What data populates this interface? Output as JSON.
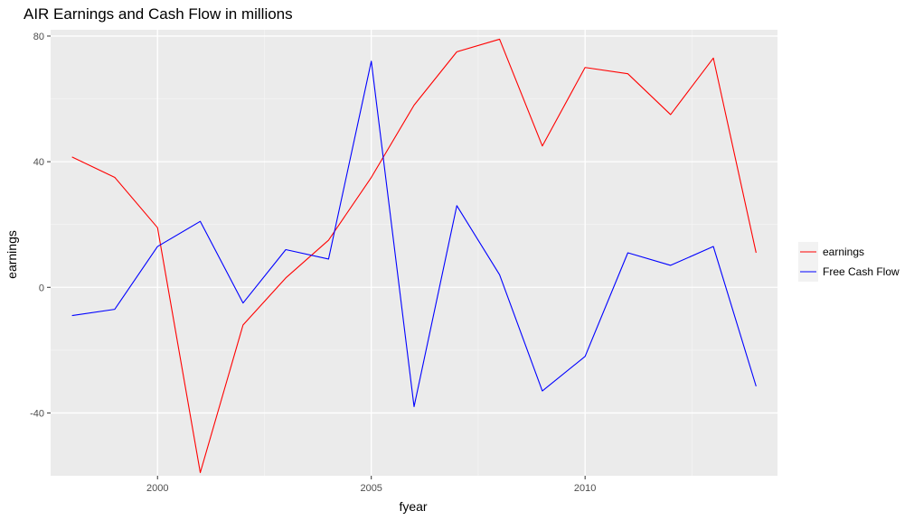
{
  "chart_data": {
    "type": "line",
    "title": "AIR Earnings and Cash Flow in millions",
    "xlabel": "fyear",
    "ylabel": "earnings",
    "xlim": [
      1997.5,
      2014.5
    ],
    "ylim": [
      -60,
      82
    ],
    "x_ticks": [
      2000,
      2005,
      2010
    ],
    "y_ticks": [
      -40,
      0,
      40,
      80
    ],
    "grid": true,
    "legend_position": "right",
    "x": [
      1998,
      1999,
      2000,
      2001,
      2002,
      2003,
      2004,
      2005,
      2006,
      2007,
      2008,
      2009,
      2010,
      2011,
      2012,
      2013,
      2014
    ],
    "series": [
      {
        "name": "earnings",
        "color": "#ff0000",
        "values": [
          41.5,
          35,
          19,
          -59,
          -12,
          3,
          15,
          35,
          58,
          75,
          79,
          45,
          70,
          68,
          55,
          73,
          11
        ]
      },
      {
        "name": "Free Cash Flow",
        "color": "#0000ff",
        "values": [
          -9,
          -7,
          13,
          21,
          -5,
          12,
          9,
          72,
          -38,
          26,
          4,
          -33,
          -22,
          11,
          7,
          13,
          -31.5
        ]
      }
    ]
  },
  "colors": {
    "panel_background": "#ebebeb",
    "grid_major": "#ffffff",
    "grid_minor": "#f5f5f5"
  }
}
